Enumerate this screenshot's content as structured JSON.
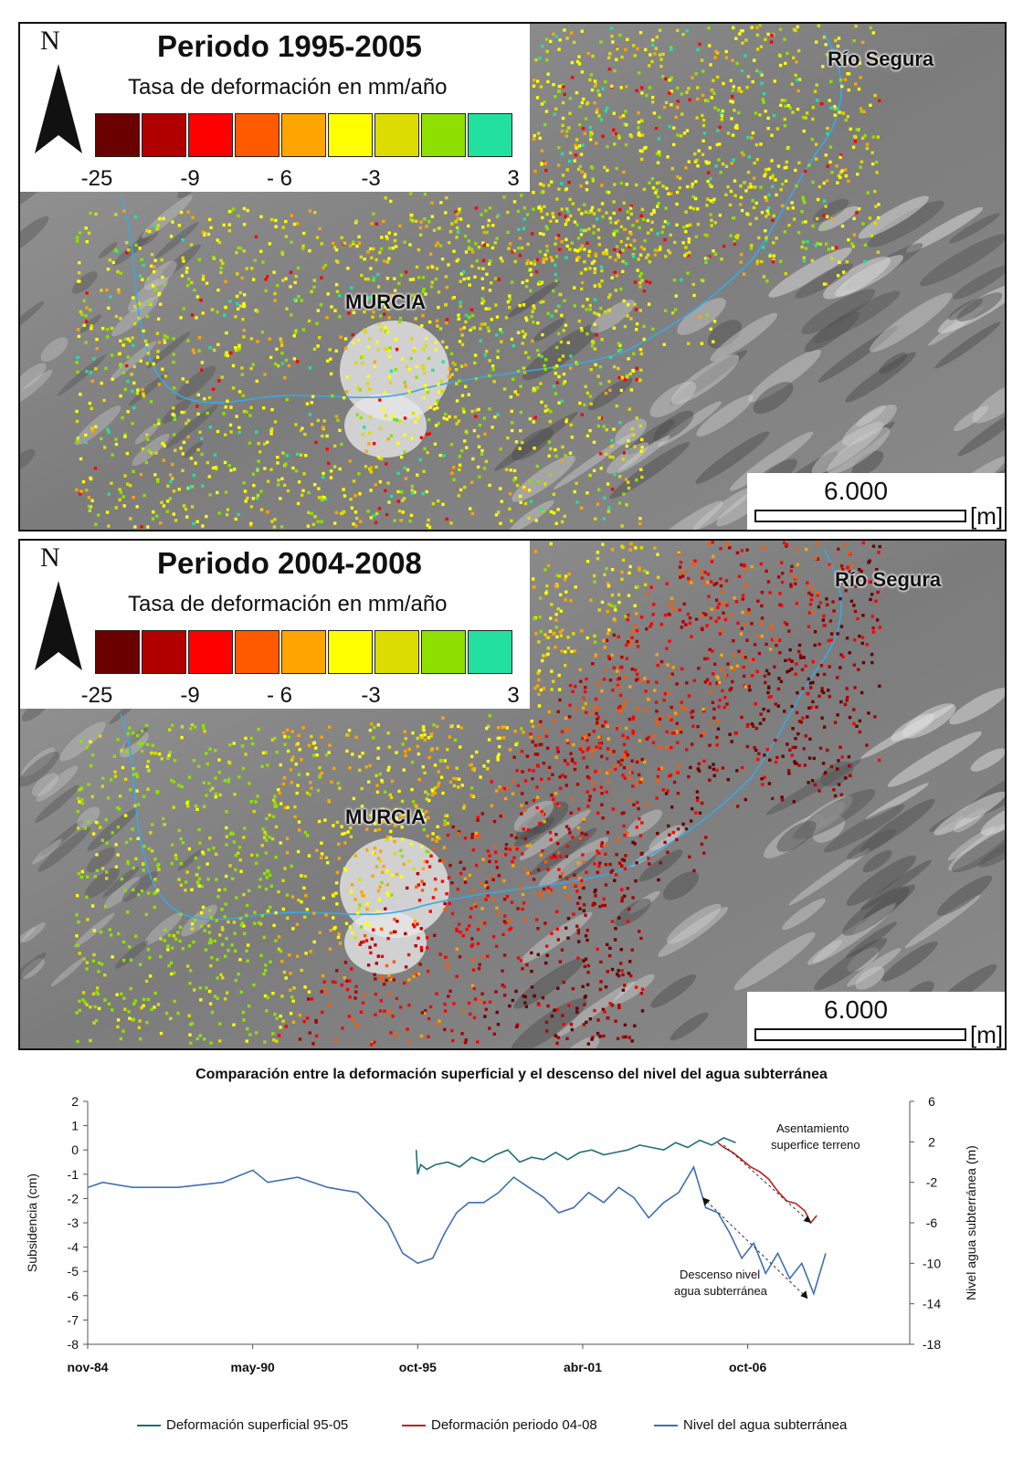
{
  "maps": [
    {
      "title": "Periodo 1995-2005",
      "legend_subtitle": "Tasa de deformación en mm/año",
      "north": "N",
      "city": "MURCIA",
      "river": "Río Segura",
      "scale_value": "6.000",
      "scale_unit": "[m]",
      "pattern": "early"
    },
    {
      "title": "Periodo 2004-2008",
      "legend_subtitle": "Tasa de deformación en mm/año",
      "north": "N",
      "city": "MURCIA",
      "river": "Río Segura",
      "scale_value": "6.000",
      "scale_unit": "[m]",
      "pattern": "late"
    }
  ],
  "legend_colors": [
    "#6b0000",
    "#b00000",
    "#ff0000",
    "#ff5a00",
    "#ffa500",
    "#ffff00",
    "#dcdc00",
    "#8ee000",
    "#22e0a0"
  ],
  "legend_ticks": [
    "-25",
    "-9",
    "- 6",
    "-3",
    "3"
  ],
  "chart_data": {
    "type": "line",
    "title": "Comparación entre la deformación superficial y el descenso del nivel del agua subterránea",
    "ylabel": "Subsidencia  (cm)",
    "y2label": "Nivel agua subterránea (m)",
    "ylim": [
      -8,
      2
    ],
    "y2lim": [
      -18,
      6
    ],
    "yticks": [
      "2",
      "1",
      "0",
      "-1",
      "-2",
      "-3",
      "-4",
      "-5",
      "-6",
      "-7",
      "-8"
    ],
    "y2ticks": [
      "6",
      "2",
      "-2",
      "-6",
      "-10",
      "-14",
      "-18"
    ],
    "xticks": [
      "nov-84",
      "may-90",
      "oct-95",
      "abr-01",
      "oct-06"
    ],
    "series": [
      {
        "name": "Deformación superficial 95-05",
        "color": "#1f6f7a",
        "axis": "left",
        "x": [
          10.95,
          11.0,
          11.1,
          11.3,
          11.6,
          12.0,
          12.4,
          12.8,
          13.2,
          13.6,
          14.0,
          14.4,
          14.8,
          15.2,
          15.6,
          16.0,
          16.4,
          16.8,
          17.2,
          17.6,
          18.0,
          18.4,
          18.8,
          19.2,
          19.6,
          20.0,
          20.4,
          20.8,
          21.2,
          21.6
        ],
        "y": [
          0.0,
          -1.0,
          -0.6,
          -0.8,
          -0.6,
          -0.5,
          -0.7,
          -0.3,
          -0.5,
          -0.2,
          0.0,
          -0.5,
          -0.3,
          -0.4,
          -0.1,
          -0.4,
          -0.1,
          0.0,
          -0.2,
          -0.1,
          0.0,
          0.2,
          0.1,
          0.0,
          0.3,
          0.1,
          0.4,
          0.2,
          0.5,
          0.3
        ]
      },
      {
        "name": "Deformación periodo 04-08",
        "color": "#c0201e",
        "axis": "left",
        "x": [
          21.0,
          21.2,
          21.5,
          21.8,
          22.1,
          22.4,
          22.7,
          23.0,
          23.3,
          23.6,
          23.9,
          24.1,
          24.3
        ],
        "y": [
          0.3,
          0.1,
          -0.1,
          -0.4,
          -0.7,
          -0.9,
          -1.2,
          -1.7,
          -2.1,
          -2.2,
          -2.5,
          -3.0,
          -2.7
        ]
      },
      {
        "name": "Nivel del agua subterránea",
        "color": "#3f6fb5",
        "axis": "right",
        "x": [
          0.0,
          0.5,
          1.5,
          3.0,
          4.5,
          5.5,
          6.0,
          7.0,
          8.0,
          9.0,
          10.0,
          10.5,
          11.0,
          11.5,
          11.9,
          12.3,
          12.7,
          13.2,
          13.7,
          14.2,
          14.7,
          15.2,
          15.7,
          16.2,
          16.7,
          17.2,
          17.7,
          18.2,
          18.7,
          19.2,
          19.7,
          20.2,
          20.6,
          21.0,
          21.4,
          21.8,
          22.2,
          22.6,
          23.0,
          23.4,
          23.8,
          24.2,
          24.6
        ],
        "y": [
          -2.5,
          -2.0,
          -2.5,
          -2.5,
          -2.0,
          -0.8,
          -2.0,
          -1.5,
          -2.5,
          -3.0,
          -6.0,
          -9.0,
          -10.0,
          -9.5,
          -7.0,
          -5.0,
          -4.0,
          -4.0,
          -3.0,
          -1.5,
          -2.5,
          -3.5,
          -5.0,
          -4.5,
          -3.0,
          -4.0,
          -2.5,
          -3.5,
          -5.5,
          -4.0,
          -3.0,
          -0.5,
          -4.5,
          -5.0,
          -7.0,
          -9.5,
          -8.0,
          -11.0,
          -9.0,
          -11.5,
          -10.0,
          -13.0,
          -9.0
        ]
      }
    ],
    "annotations": [
      "Asentamiento superfice terreno",
      "Descenso nivel agua subterránea"
    ],
    "grid": false,
    "legend": "bottom"
  }
}
